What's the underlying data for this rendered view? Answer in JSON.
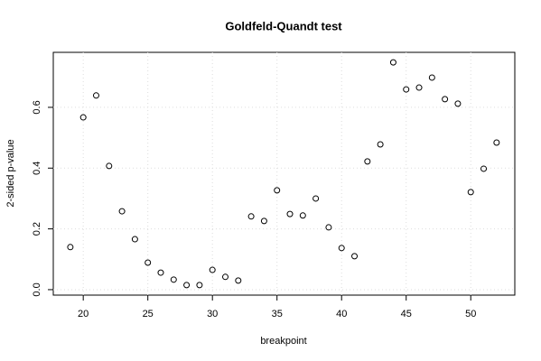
{
  "chart_data": {
    "type": "scatter",
    "title": "Goldfeld-Quandt test",
    "x_label": "breakpoint",
    "y_label": "2-sided p-value",
    "x": [
      19,
      20,
      21,
      22,
      23,
      24,
      25,
      26,
      27,
      28,
      29,
      30,
      31,
      32,
      33,
      34,
      35,
      36,
      37,
      38,
      39,
      40,
      41,
      42,
      43,
      44,
      45,
      46,
      47,
      48,
      49,
      50,
      51,
      52
    ],
    "values": [
      0.14,
      0.567,
      0.639,
      0.407,
      0.258,
      0.166,
      0.089,
      0.056,
      0.033,
      0.015,
      0.015,
      0.065,
      0.042,
      0.03,
      0.241,
      0.226,
      0.327,
      0.249,
      0.244,
      0.3,
      0.205,
      0.137,
      0.11,
      0.422,
      0.478,
      0.748,
      0.659,
      0.665,
      0.698,
      0.627,
      0.612,
      0.321,
      0.398,
      0.484
    ],
    "color": "#000000",
    "xlim": [
      17.68,
      53.41
    ],
    "ylim": [
      -0.018,
      0.781
    ],
    "xticks": [
      20,
      25,
      30,
      35,
      40,
      45,
      50
    ],
    "yticks": [
      {
        "value": 0,
        "label": "0.0"
      },
      0.2,
      0.4,
      0.6
    ],
    "grid": true
  }
}
